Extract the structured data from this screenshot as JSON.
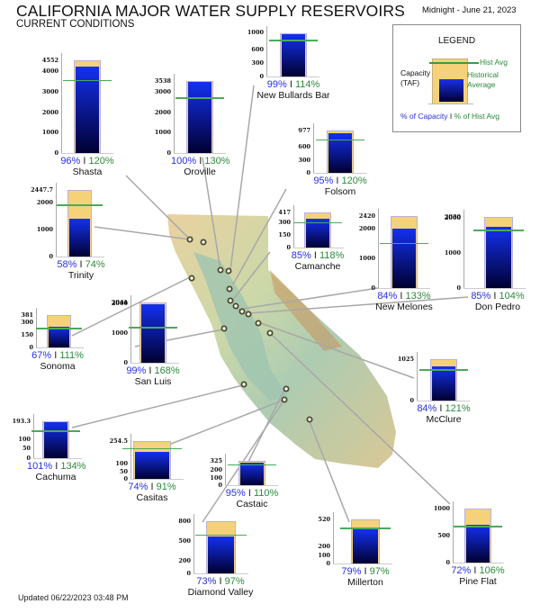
{
  "header": {
    "title": "CALIFORNIA MAJOR WATER SUPPLY RESERVOIRS",
    "subtitle": "CURRENT CONDITIONS",
    "date": "Midnight - June 21, 2023"
  },
  "footer": {
    "updated": "Updated 06/22/2023 03:48 PM"
  },
  "legend": {
    "title": "LEGEND",
    "hist_avg": "Hist Avg",
    "capacity_line1": "Capacity",
    "capacity_line2": "(TAF)",
    "historical_line1": "Historical",
    "historical_line2": "Average",
    "pct_capacity": "% of Capacity",
    "separator": "I",
    "pct_hist": "% of Hist Avg"
  },
  "colors": {
    "capacity": "#f5d27a",
    "storage_top": "#1430f0",
    "storage_bottom": "#000030",
    "hist_avg_line": "#4aaa5a",
    "pct_capacity_text": "#2630e0",
    "pct_hist_text": "#2a8a3a"
  },
  "reservoirs": [
    {
      "name": "Shasta",
      "capacity_label": "4552",
      "ticks": [
        "4000",
        "3000",
        "2000",
        "1000",
        "0"
      ],
      "pct_capacity": "96%",
      "pct_hist": "120%"
    },
    {
      "name": "Oroville",
      "capacity_label": "3538",
      "ticks": [
        "3000",
        "2000",
        "1000",
        "0"
      ],
      "pct_capacity": "100%",
      "pct_hist": "130%"
    },
    {
      "name": "New Bullards Bar",
      "capacity_label": "",
      "ticks": [
        "1000",
        "600",
        "300",
        "0"
      ],
      "pct_capacity": "99%",
      "pct_hist": "114%"
    },
    {
      "name": "Folsom",
      "capacity_label": "977",
      "ticks": [
        "600",
        "300",
        "0"
      ],
      "pct_capacity": "95%",
      "pct_hist": "120%"
    },
    {
      "name": "Trinity",
      "capacity_label": "2447.7",
      "ticks": [
        "2000",
        "1000",
        "0"
      ],
      "pct_capacity": "58%",
      "pct_hist": "74%"
    },
    {
      "name": "Camanche",
      "capacity_label": "417",
      "ticks": [
        "300",
        "150",
        "0"
      ],
      "pct_capacity": "85%",
      "pct_hist": "118%"
    },
    {
      "name": "New Melones",
      "capacity_label": "2420",
      "ticks": [
        "2000",
        "1000",
        "0"
      ],
      "pct_capacity": "84%",
      "pct_hist": "133%"
    },
    {
      "name": "Don Pedro",
      "capacity_label": "2030",
      "ticks": [
        "2000",
        "1000",
        "0"
      ],
      "pct_capacity": "85%",
      "pct_hist": "104%"
    },
    {
      "name": "Sonoma",
      "capacity_label": "381",
      "ticks": [
        "300",
        "150",
        "0"
      ],
      "pct_capacity": "67%",
      "pct_hist": "111%"
    },
    {
      "name": "San Luis",
      "capacity_label": "2041",
      "ticks": [
        "2000",
        "1000",
        "0"
      ],
      "pct_capacity": "99%",
      "pct_hist": "168%"
    },
    {
      "name": "McClure",
      "capacity_label": "1025",
      "ticks": [
        "0"
      ],
      "pct_capacity": "84%",
      "pct_hist": "121%"
    },
    {
      "name": "Cachuma",
      "capacity_label": "193.3",
      "ticks": [
        "100",
        "50",
        "0"
      ],
      "pct_capacity": "101%",
      "pct_hist": "134%"
    },
    {
      "name": "Casitas",
      "capacity_label": "254.5",
      "ticks": [
        "100",
        "50",
        "0"
      ],
      "pct_capacity": "74%",
      "pct_hist": "91%"
    },
    {
      "name": "Castaic",
      "capacity_label": "325",
      "ticks": [
        "200",
        "100",
        "0"
      ],
      "pct_capacity": "95%",
      "pct_hist": "110%"
    },
    {
      "name": "Diamond Valley",
      "capacity_label": "800",
      "ticks": [
        "500",
        "200",
        "0"
      ],
      "pct_capacity": "73%",
      "pct_hist": "97%"
    },
    {
      "name": "Millerton",
      "capacity_label": "520",
      "ticks": [
        "200",
        "100",
        "0"
      ],
      "pct_capacity": "79%",
      "pct_hist": "97%"
    },
    {
      "name": "Pine Flat",
      "capacity_label": "1000",
      "ticks": [
        "500",
        "0"
      ],
      "pct_capacity": "72%",
      "pct_hist": "106%"
    }
  ],
  "chart_data": {
    "type": "bar",
    "title": "CALIFORNIA MAJOR WATER SUPPLY RESERVOIRS - CURRENT CONDITIONS",
    "subtitle": "Midnight - June 21, 2023",
    "ylabel": "Capacity (TAF)",
    "categories": [
      "Shasta",
      "Oroville",
      "New Bullards Bar",
      "Folsom",
      "Trinity",
      "Camanche",
      "New Melones",
      "Don Pedro",
      "Sonoma",
      "San Luis",
      "McClure",
      "Cachuma",
      "Casitas",
      "Castaic",
      "Diamond Valley",
      "Millerton",
      "Pine Flat"
    ],
    "series": [
      {
        "name": "Capacity (TAF)",
        "values": [
          4552,
          3538,
          966,
          977,
          2447.7,
          417,
          2420,
          2030,
          381,
          2041,
          1025,
          193.3,
          254.5,
          325,
          800,
          520,
          1000
        ]
      },
      {
        "name": "% of Capacity",
        "values": [
          96,
          100,
          99,
          95,
          58,
          85,
          84,
          85,
          67,
          99,
          84,
          101,
          74,
          95,
          73,
          79,
          72
        ]
      },
      {
        "name": "% of Hist Avg",
        "values": [
          120,
          130,
          114,
          120,
          74,
          118,
          133,
          104,
          111,
          168,
          121,
          134,
          91,
          110,
          97,
          97,
          106
        ]
      }
    ],
    "legend": [
      "Capacity (TAF)",
      "Hist Avg",
      "Historical Average",
      "% of Capacity",
      "% of Hist Avg"
    ],
    "annotation": "Updated 06/22/2023 03:48 PM"
  }
}
